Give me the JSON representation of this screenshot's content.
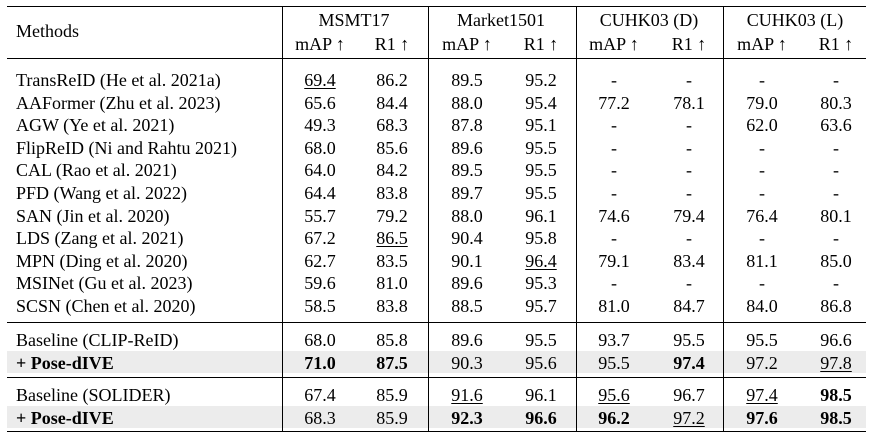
{
  "table": {
    "methods_header": "Methods",
    "datasets": [
      "MSMT17",
      "Market1501",
      "CUHK03 (D)",
      "CUHK03 (L)"
    ],
    "metric_labels": [
      "mAP ↑",
      "R1 ↑",
      "mAP ↑",
      "R1 ↑",
      "mAP ↑",
      "R1 ↑",
      "mAP ↑",
      "R1 ↑"
    ],
    "groups": [
      {
        "rows": [
          {
            "method": "TransReID (He et al. 2021a)",
            "values": [
              "69.4",
              "86.2",
              "89.5",
              "95.2",
              "-",
              "-",
              "-",
              "-"
            ],
            "underline": [
              0
            ]
          },
          {
            "method": "AAFormer (Zhu et al. 2023)",
            "values": [
              "65.6",
              "84.4",
              "88.0",
              "95.4",
              "77.2",
              "78.1",
              "79.0",
              "80.3"
            ]
          },
          {
            "method": "AGW (Ye et al. 2021)",
            "values": [
              "49.3",
              "68.3",
              "87.8",
              "95.1",
              "-",
              "-",
              "62.0",
              "63.6"
            ]
          },
          {
            "method": "FlipReID (Ni and Rahtu 2021)",
            "values": [
              "68.0",
              "85.6",
              "89.6",
              "95.5",
              "-",
              "-",
              "-",
              "-"
            ]
          },
          {
            "method": "CAL (Rao et al. 2021)",
            "values": [
              "64.0",
              "84.2",
              "89.5",
              "95.5",
              "-",
              "-",
              "-",
              "-"
            ]
          },
          {
            "method": "PFD (Wang et al. 2022)",
            "values": [
              "64.4",
              "83.8",
              "89.7",
              "95.5",
              "-",
              "-",
              "-",
              "-"
            ]
          },
          {
            "method": "SAN (Jin et al. 2020)",
            "values": [
              "55.7",
              "79.2",
              "88.0",
              "96.1",
              "74.6",
              "79.4",
              "76.4",
              "80.1"
            ]
          },
          {
            "method": "LDS (Zang et al. 2021)",
            "values": [
              "67.2",
              "86.5",
              "90.4",
              "95.8",
              "-",
              "-",
              "-",
              "-"
            ],
            "underline": [
              1
            ]
          },
          {
            "method": "MPN (Ding et al. 2020)",
            "values": [
              "62.7",
              "83.5",
              "90.1",
              "96.4",
              "79.1",
              "83.4",
              "81.1",
              "85.0"
            ],
            "underline": [
              3
            ]
          },
          {
            "method": "MSINet (Gu et al. 2023)",
            "values": [
              "59.6",
              "81.0",
              "89.6",
              "95.3",
              "-",
              "-",
              "-",
              "-"
            ]
          },
          {
            "method": "SCSN (Chen et al. 2020)",
            "values": [
              "58.5",
              "83.8",
              "88.5",
              "95.7",
              "81.0",
              "84.7",
              "84.0",
              "86.8"
            ]
          }
        ]
      },
      {
        "rows": [
          {
            "method": "Baseline (CLIP-ReID)",
            "values": [
              "68.0",
              "85.8",
              "89.6",
              "95.5",
              "93.7",
              "95.5",
              "95.5",
              "96.6"
            ]
          },
          {
            "method": "+ Pose-dIVE",
            "method_bold": true,
            "shaded": true,
            "values": [
              "71.0",
              "87.5",
              "90.3",
              "95.6",
              "95.5",
              "97.4",
              "97.2",
              "97.8"
            ],
            "bold": [
              0,
              1,
              5
            ],
            "underline": [
              7
            ]
          }
        ]
      },
      {
        "rows": [
          {
            "method": "Baseline (SOLIDER)",
            "values": [
              "67.4",
              "85.9",
              "91.6",
              "96.1",
              "95.6",
              "96.7",
              "97.4",
              "98.5"
            ],
            "bold": [
              7
            ],
            "underline": [
              2,
              4,
              6
            ]
          },
          {
            "method": "+ Pose-dIVE",
            "method_bold": true,
            "shaded": true,
            "values": [
              "68.3",
              "85.9",
              "92.3",
              "96.6",
              "96.2",
              "97.2",
              "97.6",
              "98.5"
            ],
            "bold": [
              2,
              3,
              4,
              6,
              7
            ],
            "underline": [
              5
            ]
          }
        ]
      }
    ]
  }
}
